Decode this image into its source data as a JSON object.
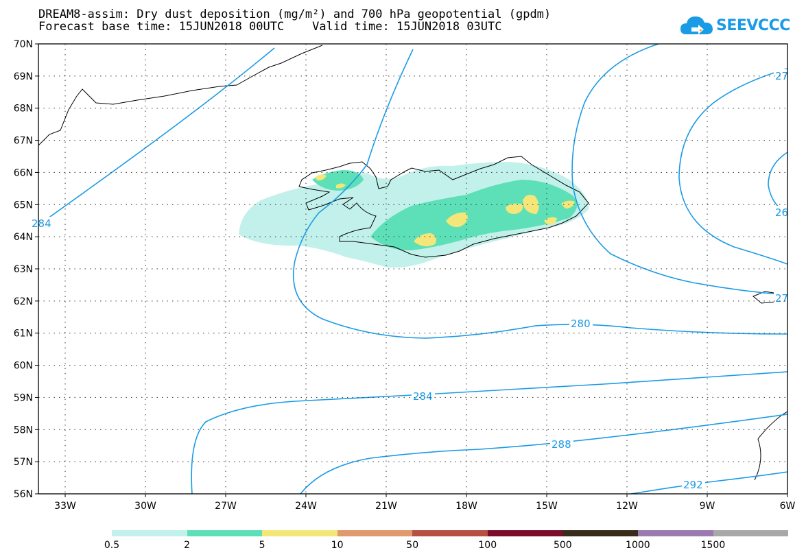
{
  "header": {
    "line1": "DREAM8-assim: Dry dust deposition (mg/m²) and 700 hPa geopotential (gpdm)",
    "line2": "Forecast base time: 15JUN2018 00UTC    Valid time: 15JUN2018 03UTC"
  },
  "logo": {
    "text": "SEEVCCC",
    "icon": "cloud-icon",
    "color": "#1a9be6"
  },
  "map": {
    "lon_range": [
      -34,
      -6
    ],
    "lat_range": [
      56,
      70
    ],
    "lat_labels": [
      "70N",
      "69N",
      "68N",
      "67N",
      "66N",
      "65N",
      "64N",
      "63N",
      "62N",
      "61N",
      "60N",
      "59N",
      "58N",
      "57N",
      "56N"
    ],
    "lon_labels": [
      "33W",
      "30W",
      "27W",
      "24W",
      "21W",
      "18W",
      "15W",
      "12W",
      "9W",
      "6W"
    ],
    "contour_labels": [
      "280",
      "284",
      "288",
      "292",
      "284",
      "27",
      "26",
      "27"
    ],
    "contour_color": "#1a9be6"
  },
  "legend": {
    "colors": [
      "#c2f0ea",
      "#5de0b8",
      "#f5e67a",
      "#e09a6e",
      "#b55043",
      "#7a0d2a",
      "#3a2a1a",
      "#9a7ab0",
      "#a8a8a8"
    ],
    "labels": [
      "0.5",
      "2",
      "5",
      "10",
      "50",
      "100",
      "500",
      "1000",
      "1500"
    ]
  }
}
